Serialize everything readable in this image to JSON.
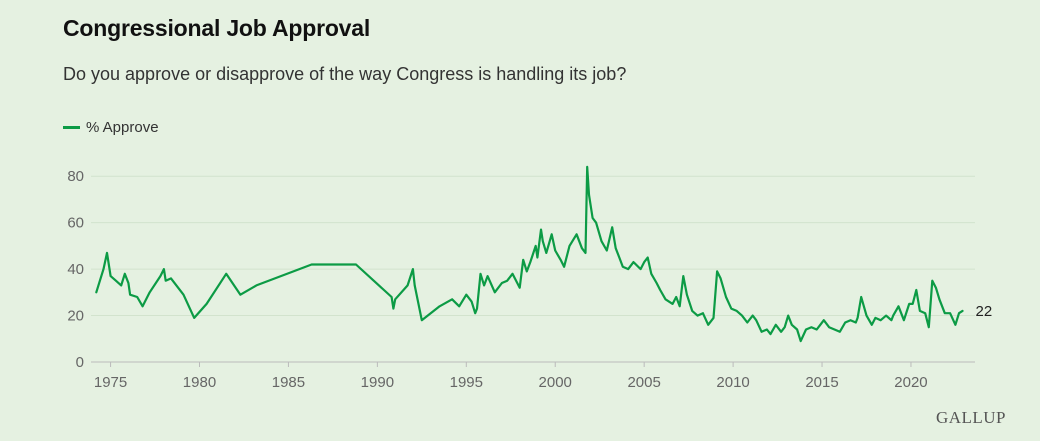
{
  "title": "Congressional Job Approval",
  "subtitle": "Do you approve or disapprove of the way Congress is handling its job?",
  "legend_label": "% Approve",
  "brand": "GALLUP",
  "colors": {
    "line": "#0c9b45",
    "background": "#e5f1e1",
    "grid": "#d2e3cd"
  },
  "chart_data": {
    "type": "line",
    "title": "Congressional Job Approval",
    "subtitle": "Do you approve or disapprove of the way Congress is handling its job?",
    "xlabel": "",
    "ylabel": "",
    "xlim": [
      1973.9,
      2023.6
    ],
    "ylim": [
      0,
      90
    ],
    "xticks": [
      1975,
      1980,
      1985,
      1990,
      1995,
      2000,
      2005,
      2010,
      2015,
      2020
    ],
    "yticks": [
      0,
      20,
      40,
      60,
      80
    ],
    "grid": true,
    "legend_position": "top-left",
    "end_label": "22",
    "series": [
      {
        "name": "% Approve",
        "color": "#0c9b45",
        "points": [
          [
            1974.2,
            30
          ],
          [
            1974.6,
            40
          ],
          [
            1974.8,
            47
          ],
          [
            1975.0,
            37
          ],
          [
            1975.3,
            35
          ],
          [
            1975.6,
            33
          ],
          [
            1975.8,
            38
          ],
          [
            1976.0,
            34
          ],
          [
            1976.1,
            29
          ],
          [
            1976.5,
            28
          ],
          [
            1976.8,
            24
          ],
          [
            1977.2,
            30
          ],
          [
            1977.8,
            37
          ],
          [
            1978.0,
            40
          ],
          [
            1978.1,
            35
          ],
          [
            1978.4,
            36
          ],
          [
            1979.1,
            29
          ],
          [
            1979.7,
            19
          ],
          [
            1980.4,
            25
          ],
          [
            1981.5,
            38
          ],
          [
            1982.3,
            29
          ],
          [
            1983.2,
            33
          ],
          [
            1986.3,
            42
          ],
          [
            1988.8,
            42
          ],
          [
            1990.8,
            28
          ],
          [
            1990.9,
            23
          ],
          [
            1991.0,
            27
          ],
          [
            1991.7,
            33
          ],
          [
            1992.0,
            40
          ],
          [
            1992.1,
            33
          ],
          [
            1992.5,
            18
          ],
          [
            1993.5,
            24
          ],
          [
            1994.2,
            27
          ],
          [
            1994.6,
            24
          ],
          [
            1995.0,
            29
          ],
          [
            1995.3,
            26
          ],
          [
            1995.5,
            21
          ],
          [
            1995.6,
            23
          ],
          [
            1995.8,
            38
          ],
          [
            1996.0,
            33
          ],
          [
            1996.2,
            37
          ],
          [
            1996.6,
            30
          ],
          [
            1997.0,
            34
          ],
          [
            1997.3,
            35
          ],
          [
            1997.6,
            38
          ],
          [
            1998.0,
            32
          ],
          [
            1998.2,
            44
          ],
          [
            1998.4,
            39
          ],
          [
            1998.6,
            43
          ],
          [
            1998.9,
            50
          ],
          [
            1999.0,
            45
          ],
          [
            1999.2,
            57
          ],
          [
            1999.3,
            52
          ],
          [
            1999.5,
            47
          ],
          [
            1999.8,
            55
          ],
          [
            2000.0,
            48
          ],
          [
            2000.3,
            44
          ],
          [
            2000.5,
            41
          ],
          [
            2000.8,
            50
          ],
          [
            2001.2,
            55
          ],
          [
            2001.5,
            49
          ],
          [
            2001.7,
            47
          ],
          [
            2001.8,
            84
          ],
          [
            2001.9,
            72
          ],
          [
            2002.1,
            62
          ],
          [
            2002.3,
            60
          ],
          [
            2002.6,
            52
          ],
          [
            2002.9,
            48
          ],
          [
            2003.2,
            58
          ],
          [
            2003.4,
            49
          ],
          [
            2003.6,
            45
          ],
          [
            2003.8,
            41
          ],
          [
            2004.1,
            40
          ],
          [
            2004.4,
            43
          ],
          [
            2004.8,
            40
          ],
          [
            2005.0,
            43
          ],
          [
            2005.2,
            45
          ],
          [
            2005.4,
            38
          ],
          [
            2005.7,
            34
          ],
          [
            2005.9,
            31
          ],
          [
            2006.2,
            27
          ],
          [
            2006.6,
            25
          ],
          [
            2006.8,
            28
          ],
          [
            2007.0,
            24
          ],
          [
            2007.2,
            37
          ],
          [
            2007.4,
            29
          ],
          [
            2007.7,
            22
          ],
          [
            2008.0,
            20
          ],
          [
            2008.3,
            21
          ],
          [
            2008.6,
            16
          ],
          [
            2008.9,
            19
          ],
          [
            2009.1,
            39
          ],
          [
            2009.3,
            36
          ],
          [
            2009.6,
            28
          ],
          [
            2009.9,
            23
          ],
          [
            2010.2,
            22
          ],
          [
            2010.5,
            20
          ],
          [
            2010.8,
            17
          ],
          [
            2011.1,
            20
          ],
          [
            2011.3,
            18
          ],
          [
            2011.6,
            13
          ],
          [
            2011.9,
            14
          ],
          [
            2012.1,
            12
          ],
          [
            2012.4,
            16
          ],
          [
            2012.7,
            13
          ],
          [
            2012.9,
            15
          ],
          [
            2013.1,
            20
          ],
          [
            2013.3,
            16
          ],
          [
            2013.6,
            14
          ],
          [
            2013.8,
            9
          ],
          [
            2014.1,
            14
          ],
          [
            2014.4,
            15
          ],
          [
            2014.7,
            14
          ],
          [
            2014.9,
            16
          ],
          [
            2015.1,
            18
          ],
          [
            2015.4,
            15
          ],
          [
            2015.7,
            14
          ],
          [
            2016.0,
            13
          ],
          [
            2016.3,
            17
          ],
          [
            2016.6,
            18
          ],
          [
            2016.9,
            17
          ],
          [
            2017.0,
            19
          ],
          [
            2017.2,
            28
          ],
          [
            2017.5,
            20
          ],
          [
            2017.8,
            16
          ],
          [
            2018.0,
            19
          ],
          [
            2018.3,
            18
          ],
          [
            2018.6,
            20
          ],
          [
            2018.9,
            18
          ],
          [
            2019.0,
            20
          ],
          [
            2019.3,
            24
          ],
          [
            2019.6,
            18
          ],
          [
            2019.9,
            25
          ],
          [
            2020.1,
            25
          ],
          [
            2020.3,
            31
          ],
          [
            2020.5,
            22
          ],
          [
            2020.8,
            21
          ],
          [
            2020.9,
            18
          ],
          [
            2021.0,
            15
          ],
          [
            2021.2,
            35
          ],
          [
            2021.4,
            32
          ],
          [
            2021.6,
            27
          ],
          [
            2021.9,
            21
          ],
          [
            2022.2,
            21
          ],
          [
            2022.5,
            16
          ],
          [
            2022.7,
            21
          ],
          [
            2022.9,
            22
          ]
        ]
      }
    ]
  }
}
